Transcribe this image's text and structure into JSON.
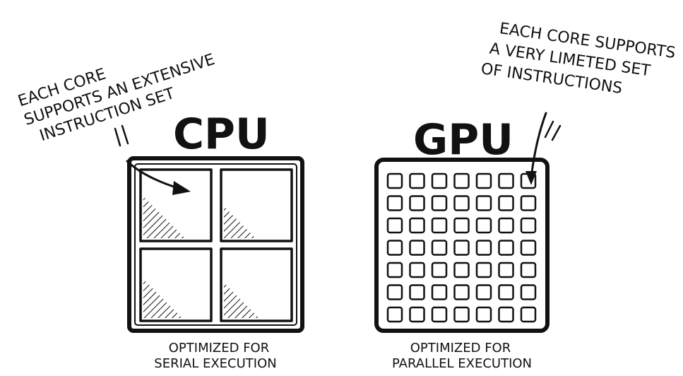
{
  "cpu": {
    "title": "CPU",
    "annotation": [
      "EACH CORE",
      "SUPPORTS AN EXTENSIVE",
      "INSTRUCTION SET"
    ],
    "caption": [
      "OPTIMIZED FOR",
      "SERIAL EXECUTION"
    ]
  },
  "gpu": {
    "title": "GPU",
    "annotation": [
      "EACH CORE SUPPORTS",
      "A VERY LIMETED SET",
      "OF INSTRUCTIONS"
    ],
    "caption": [
      "OPTIMIZED FOR",
      "PARALLEL EXECUTION"
    ]
  }
}
